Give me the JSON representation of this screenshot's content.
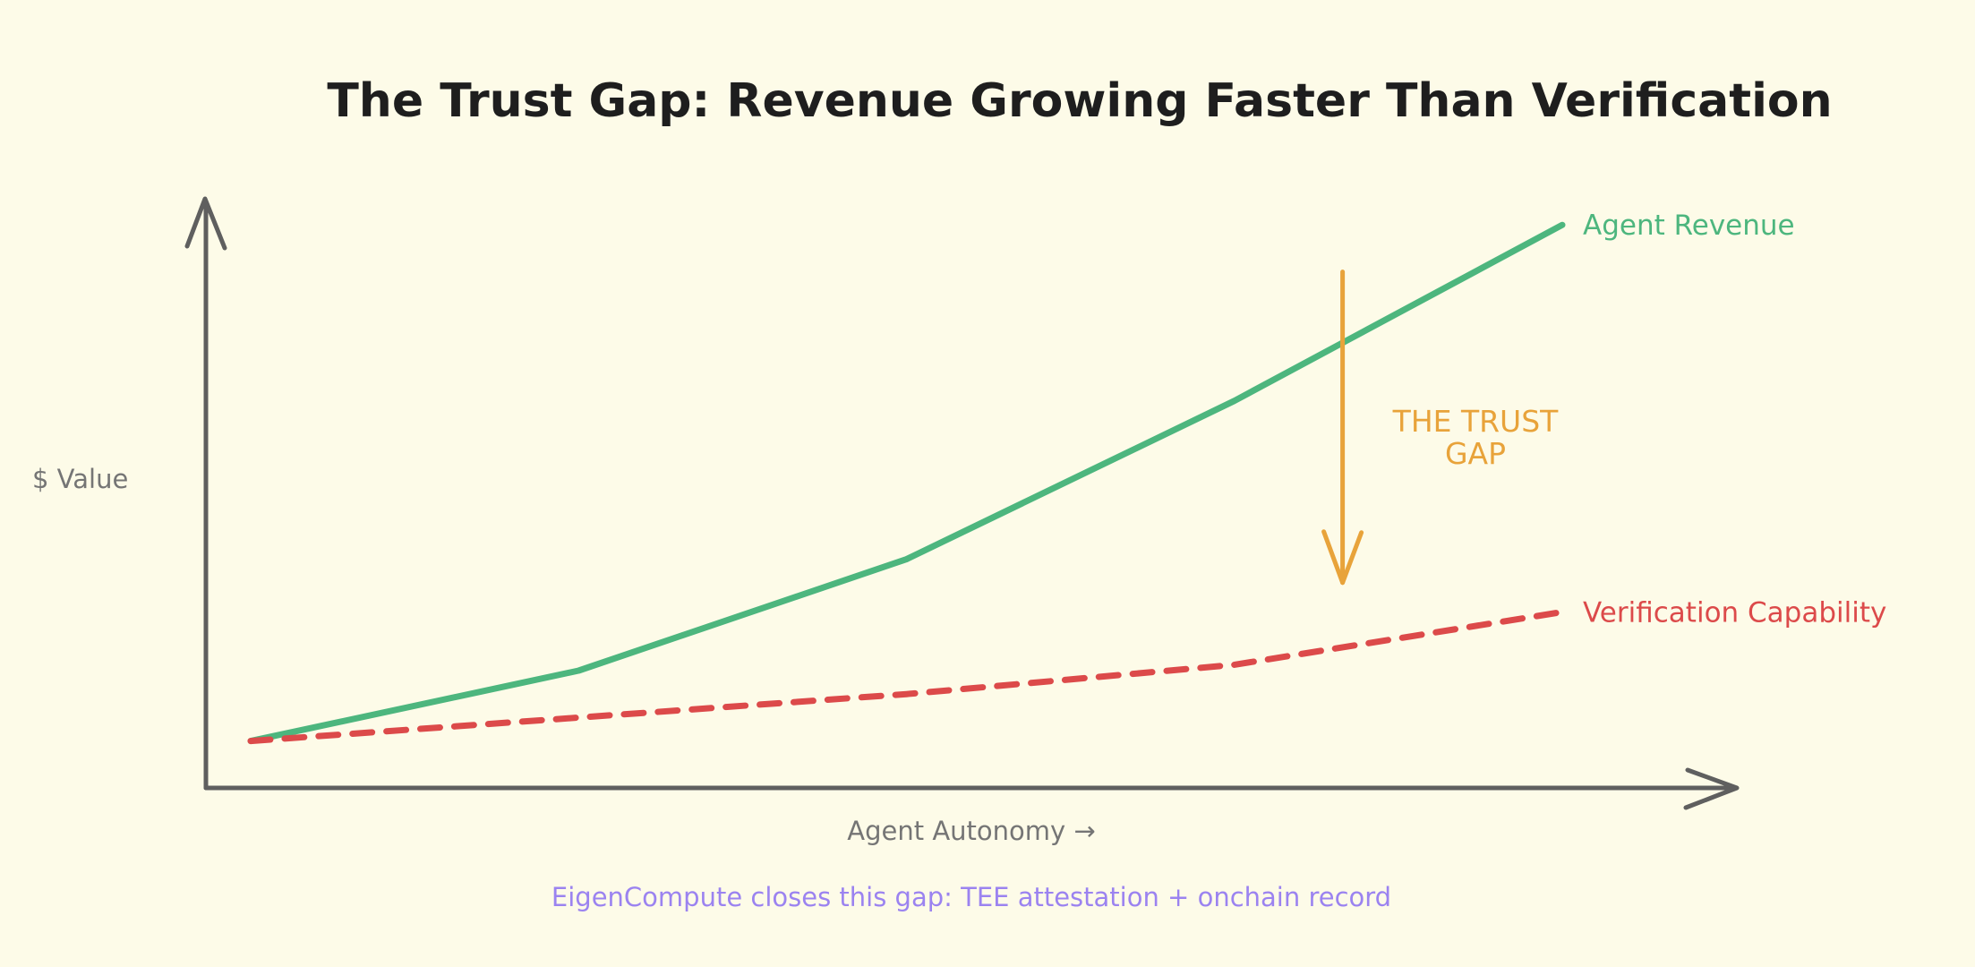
{
  "chart_data": {
    "type": "line",
    "title": "The Trust Gap: Revenue Growing Faster Than Verification",
    "xlabel": "Agent Autonomy →",
    "ylabel": "$ Value",
    "x": [
      0,
      1,
      2,
      3,
      4
    ],
    "xlim": [
      0,
      4
    ],
    "ylim": [
      0,
      100
    ],
    "grid": false,
    "legend": "inline-right",
    "series": [
      {
        "name": "Agent Revenue",
        "color": "#4db67e",
        "style": "solid",
        "values": [
          8,
          20,
          39,
          66,
          96
        ]
      },
      {
        "name": "Verification Capability",
        "color": "#dc4a4a",
        "style": "dashed",
        "values": [
          8,
          12,
          16,
          21,
          30
        ]
      }
    ],
    "annotations": [
      {
        "label_lines": [
          "THE TRUST",
          "GAP"
        ],
        "type": "arrow-down",
        "color": "#e8a33a",
        "x": 3.33,
        "from_y": 88,
        "to_y": 35
      }
    ],
    "footer": "EigenCompute closes this gap: TEE attestation + onchain record",
    "axis_color": "#5f5f5f"
  }
}
